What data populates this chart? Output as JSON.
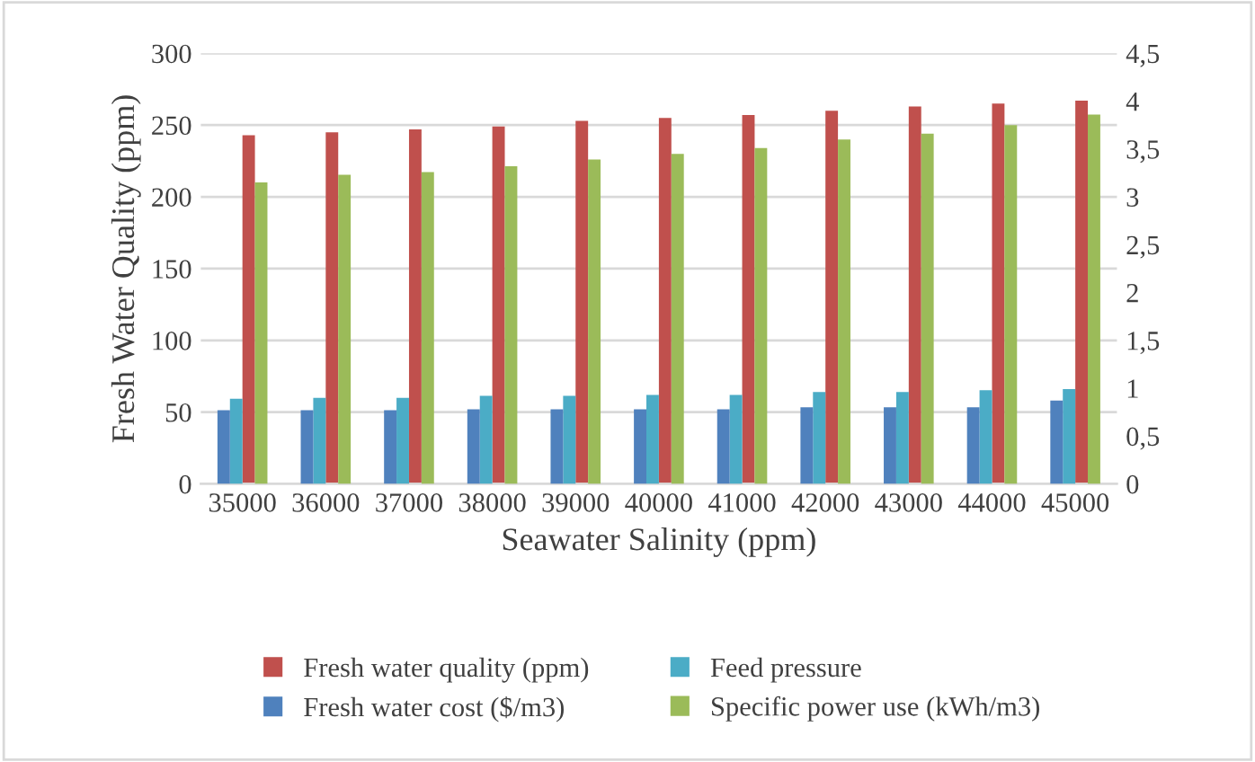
{
  "chart_data": {
    "type": "bar",
    "xlabel": "Seawater Salinity (ppm)",
    "ylabel": "Fresh Water Quality (ppm)",
    "categories": [
      "35000",
      "36000",
      "37000",
      "38000",
      "39000",
      "40000",
      "41000",
      "42000",
      "43000",
      "44000",
      "45000"
    ],
    "series": [
      {
        "name": "Fresh water quality (ppm)",
        "color": "#c0504d",
        "values": [
          243,
          245,
          247,
          249,
          253,
          255,
          257,
          260,
          263,
          265,
          267
        ]
      },
      {
        "name": "Feed pressure",
        "color": "#4bacc6",
        "axis": "y2",
        "values": [
          0.89,
          0.9,
          0.9,
          0.92,
          0.92,
          0.93,
          0.93,
          0.96,
          0.96,
          0.98,
          0.99
        ]
      },
      {
        "name": "Fresh water cost ($/m3)",
        "color": "#4f81bd",
        "axis": "y2",
        "values": [
          0.77,
          0.77,
          0.77,
          0.78,
          0.78,
          0.78,
          0.78,
          0.8,
          0.8,
          0.8,
          0.87
        ]
      },
      {
        "name": "Specific power use (kWh/m3)",
        "color": "#9bbb59",
        "axis": "y2",
        "values": [
          3.15,
          3.23,
          3.26,
          3.32,
          3.39,
          3.45,
          3.51,
          3.6,
          3.66,
          3.75,
          3.86
        ]
      }
    ],
    "ylim": [
      0,
      300
    ],
    "yticks": [
      0,
      50,
      100,
      150,
      200,
      250,
      300
    ],
    "y2lim": [
      0,
      4.5
    ],
    "y2ticks": [
      0,
      {
        "value": 0.5,
        "label": "0,5"
      },
      1,
      {
        "value": 1.5,
        "label": "1,5"
      },
      2,
      {
        "value": 2.5,
        "label": "2,5"
      },
      3,
      {
        "value": 3.5,
        "label": "3,5"
      },
      4,
      {
        "value": 4.5,
        "label": "4,5"
      }
    ],
    "grid": "y",
    "legend": "bottom"
  }
}
